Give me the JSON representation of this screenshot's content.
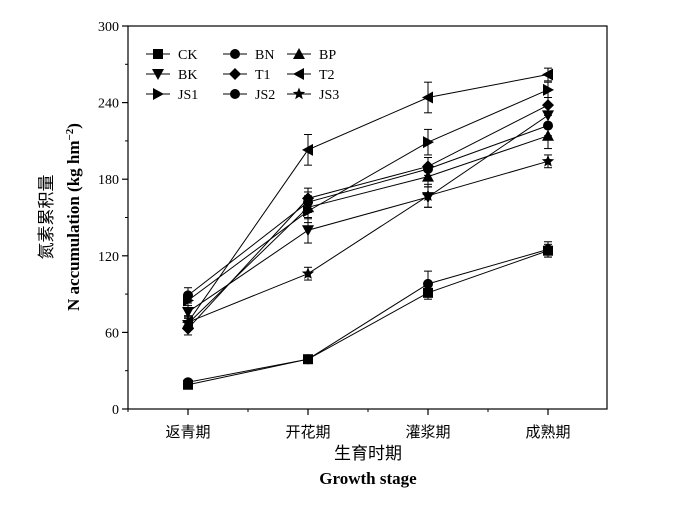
{
  "chart_data": {
    "type": "line",
    "categories": [
      "返青期",
      "开花期",
      "灌浆期",
      "成熟期"
    ],
    "xlabel_cn": "生育时期",
    "xlabel_en": "Growth stage",
    "ylabel_cn": "氮素累积量",
    "ylabel_en_main": "N accumulation (kg hm",
    "ylabel_en_sup": "−2",
    "ylabel_en_close": ")",
    "ylim": [
      0,
      300
    ],
    "yticks": [
      0,
      60,
      120,
      180,
      240,
      300
    ],
    "ytick_labels": [
      "0",
      "60",
      "120",
      "180",
      "240",
      "300"
    ],
    "legend_placement": "top-left",
    "series": [
      {
        "name": "CK",
        "marker": "square",
        "values": [
          19,
          39,
          91,
          124
        ],
        "errors": [
          1,
          2,
          5,
          5
        ]
      },
      {
        "name": "BN",
        "marker": "circle",
        "values": [
          21,
          39,
          98,
          125
        ],
        "errors": [
          1,
          2,
          10,
          6
        ]
      },
      {
        "name": "BP",
        "marker": "triangle-up",
        "values": [
          67,
          158,
          182,
          214
        ],
        "errors": [
          5,
          9,
          8,
          10
        ]
      },
      {
        "name": "BK",
        "marker": "triangle-down",
        "values": [
          76,
          140,
          166,
          230
        ],
        "errors": [
          5,
          10,
          8,
          8
        ]
      },
      {
        "name": "T1",
        "marker": "diamond",
        "values": [
          63,
          165,
          190,
          238
        ],
        "errors": [
          5,
          8,
          7,
          6
        ]
      },
      {
        "name": "T2",
        "marker": "triangle-left",
        "values": [
          68,
          203,
          244,
          262
        ],
        "errors": [
          5,
          12,
          12,
          5
        ]
      },
      {
        "name": "JS1",
        "marker": "triangle-right",
        "values": [
          85,
          155,
          209,
          250
        ],
        "errors": [
          6,
          9,
          10,
          6
        ]
      },
      {
        "name": "JS2",
        "marker": "circle",
        "values": [
          89,
          162,
          188,
          222
        ],
        "errors": [
          6,
          8,
          9,
          8
        ]
      },
      {
        "name": "JS3",
        "marker": "star",
        "values": [
          68,
          106,
          167,
          194
        ],
        "errors": [
          5,
          5,
          9,
          5
        ]
      }
    ]
  }
}
